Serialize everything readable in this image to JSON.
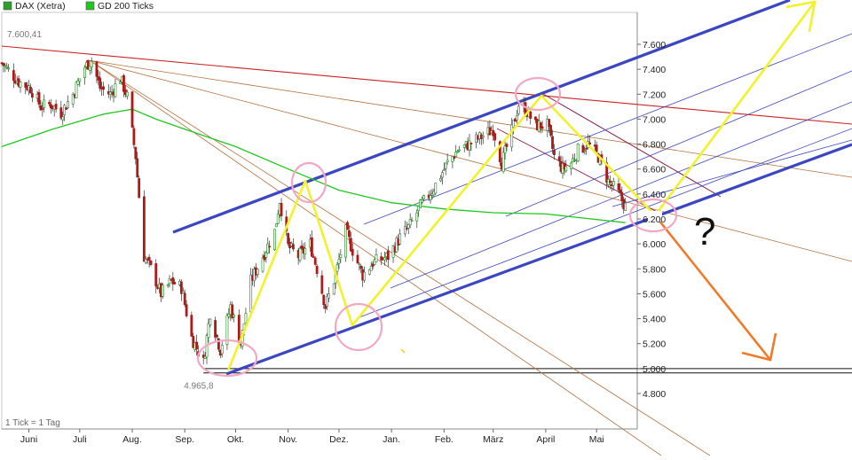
{
  "chart_data": {
    "type": "candlestick",
    "legend": [
      {
        "label": "DAX (Xetra)",
        "color": "#2e9e2e"
      },
      {
        "label": "GD 200 Ticks",
        "color": "#1ec81e"
      }
    ],
    "footer_note": "1 Tick = 1 Tag",
    "price_axis": {
      "position": "right",
      "ylim": [
        4650,
        7900
      ],
      "ticks": [
        4800,
        5000,
        5200,
        5400,
        5600,
        5800,
        6000,
        6200,
        6400,
        6600,
        6800,
        7000,
        7200,
        7400,
        7600
      ],
      "tick_labels": [
        "4.800",
        "5.000",
        "5.200",
        "5.400",
        "5.600",
        "5.800",
        "6.000",
        "6.200",
        "6.400",
        "6.600",
        "6.800",
        "7.000",
        "7.200",
        "7.400",
        "7.600"
      ]
    },
    "time_axis": {
      "start": "2011-05-16",
      "end": "2012-05-25",
      "ticks": [
        {
          "date": "2011-06-01",
          "label": "Juni"
        },
        {
          "date": "2011-07-01",
          "label": "Juli"
        },
        {
          "date": "2011-08-01",
          "label": "Aug."
        },
        {
          "date": "2011-09-01",
          "label": "Sep."
        },
        {
          "date": "2011-10-01",
          "label": "Okt."
        },
        {
          "date": "2011-11-01",
          "label": "Nov."
        },
        {
          "date": "2011-12-01",
          "label": "Dez."
        },
        {
          "date": "2012-01-01",
          "label": "Jan."
        },
        {
          "date": "2012-02-01",
          "label": "Feb."
        },
        {
          "date": "2012-03-01",
          "label": "März"
        },
        {
          "date": "2012-04-01",
          "label": "April"
        },
        {
          "date": "2012-05-01",
          "label": "Mai"
        }
      ]
    },
    "extreme_labels": [
      {
        "text": "7.600,41",
        "date": "2011-05-16",
        "value": 7600.41
      },
      {
        "text": "4.965,8",
        "date": "2011-09-12",
        "value": 4965.8
      }
    ],
    "price_path": [
      {
        "date": "2011-05-16",
        "value": 7450
      },
      {
        "date": "2011-05-20",
        "value": 7390
      },
      {
        "date": "2011-05-26",
        "value": 7300
      },
      {
        "date": "2011-06-02",
        "value": 7250
      },
      {
        "date": "2011-06-08",
        "value": 7100
      },
      {
        "date": "2011-06-14",
        "value": 7120
      },
      {
        "date": "2011-06-20",
        "value": 7050
      },
      {
        "date": "2011-06-27",
        "value": 7200
      },
      {
        "date": "2011-07-04",
        "value": 7420
      },
      {
        "date": "2011-07-08",
        "value": 7470
      },
      {
        "date": "2011-07-13",
        "value": 7250
      },
      {
        "date": "2011-07-19",
        "value": 7200
      },
      {
        "date": "2011-07-25",
        "value": 7330
      },
      {
        "date": "2011-07-29",
        "value": 7180
      },
      {
        "date": "2011-08-03",
        "value": 6700
      },
      {
        "date": "2011-08-08",
        "value": 5900
      },
      {
        "date": "2011-08-12",
        "value": 5800
      },
      {
        "date": "2011-08-18",
        "value": 5600
      },
      {
        "date": "2011-08-24",
        "value": 5700
      },
      {
        "date": "2011-08-30",
        "value": 5650
      },
      {
        "date": "2011-09-05",
        "value": 5250
      },
      {
        "date": "2011-09-12",
        "value": 5050
      },
      {
        "date": "2011-09-16",
        "value": 5450
      },
      {
        "date": "2011-09-22",
        "value": 5150
      },
      {
        "date": "2011-09-28",
        "value": 5500
      },
      {
        "date": "2011-10-04",
        "value": 5200
      },
      {
        "date": "2011-10-10",
        "value": 5700
      },
      {
        "date": "2011-10-17",
        "value": 5900
      },
      {
        "date": "2011-10-24",
        "value": 6100
      },
      {
        "date": "2011-10-27",
        "value": 6350
      },
      {
        "date": "2011-11-01",
        "value": 5980
      },
      {
        "date": "2011-11-07",
        "value": 5900
      },
      {
        "date": "2011-11-14",
        "value": 6000
      },
      {
        "date": "2011-11-18",
        "value": 5800
      },
      {
        "date": "2011-11-23",
        "value": 5500
      },
      {
        "date": "2011-11-29",
        "value": 5750
      },
      {
        "date": "2011-12-05",
        "value": 6100
      },
      {
        "date": "2011-12-09",
        "value": 5950
      },
      {
        "date": "2011-12-15",
        "value": 5750
      },
      {
        "date": "2011-12-21",
        "value": 5850
      },
      {
        "date": "2011-12-30",
        "value": 5900
      },
      {
        "date": "2012-01-06",
        "value": 6050
      },
      {
        "date": "2012-01-12",
        "value": 6150
      },
      {
        "date": "2012-01-18",
        "value": 6300
      },
      {
        "date": "2012-01-26",
        "value": 6450
      },
      {
        "date": "2012-02-03",
        "value": 6650
      },
      {
        "date": "2012-02-09",
        "value": 6750
      },
      {
        "date": "2012-02-16",
        "value": 6800
      },
      {
        "date": "2012-02-23",
        "value": 6860
      },
      {
        "date": "2012-03-01",
        "value": 6920
      },
      {
        "date": "2012-03-06",
        "value": 6650
      },
      {
        "date": "2012-03-12",
        "value": 6900
      },
      {
        "date": "2012-03-16",
        "value": 7120
      },
      {
        "date": "2012-03-20",
        "value": 7080
      },
      {
        "date": "2012-03-26",
        "value": 6950
      },
      {
        "date": "2012-04-02",
        "value": 6950
      },
      {
        "date": "2012-04-06",
        "value": 6700
      },
      {
        "date": "2012-04-11",
        "value": 6600
      },
      {
        "date": "2012-04-16",
        "value": 6650
      },
      {
        "date": "2012-04-20",
        "value": 6750
      },
      {
        "date": "2012-04-26",
        "value": 6800
      },
      {
        "date": "2012-05-02",
        "value": 6700
      },
      {
        "date": "2012-05-08",
        "value": 6500
      },
      {
        "date": "2012-05-14",
        "value": 6400
      },
      {
        "date": "2012-05-18",
        "value": 6300
      }
    ],
    "moving_average": [
      {
        "date": "2011-05-16",
        "value": 6780
      },
      {
        "date": "2011-06-15",
        "value": 6920
      },
      {
        "date": "2011-07-15",
        "value": 7040
      },
      {
        "date": "2011-08-01",
        "value": 7080
      },
      {
        "date": "2011-08-15",
        "value": 7000
      },
      {
        "date": "2011-09-01",
        "value": 6920
      },
      {
        "date": "2011-10-01",
        "value": 6780
      },
      {
        "date": "2011-11-01",
        "value": 6600
      },
      {
        "date": "2011-12-01",
        "value": 6430
      },
      {
        "date": "2012-01-01",
        "value": 6330
      },
      {
        "date": "2012-02-01",
        "value": 6280
      },
      {
        "date": "2012-03-01",
        "value": 6250
      },
      {
        "date": "2012-04-01",
        "value": 6240
      },
      {
        "date": "2012-05-18",
        "value": 6170
      }
    ],
    "horizontal_lines": [
      5000,
      4965
    ],
    "annotations": {
      "question_mark": "?",
      "marked_points": [
        {
          "date": "2011-09-12",
          "value": 4965,
          "type": "circle"
        },
        {
          "date": "2011-10-27",
          "value": 6500,
          "type": "circle"
        },
        {
          "date": "2011-11-23",
          "value": 5300,
          "type": "circle"
        },
        {
          "date": "2012-03-16",
          "value": 7210,
          "type": "circle"
        },
        {
          "date": "2012-05-18",
          "value": 6210,
          "type": "circle"
        }
      ]
    }
  }
}
